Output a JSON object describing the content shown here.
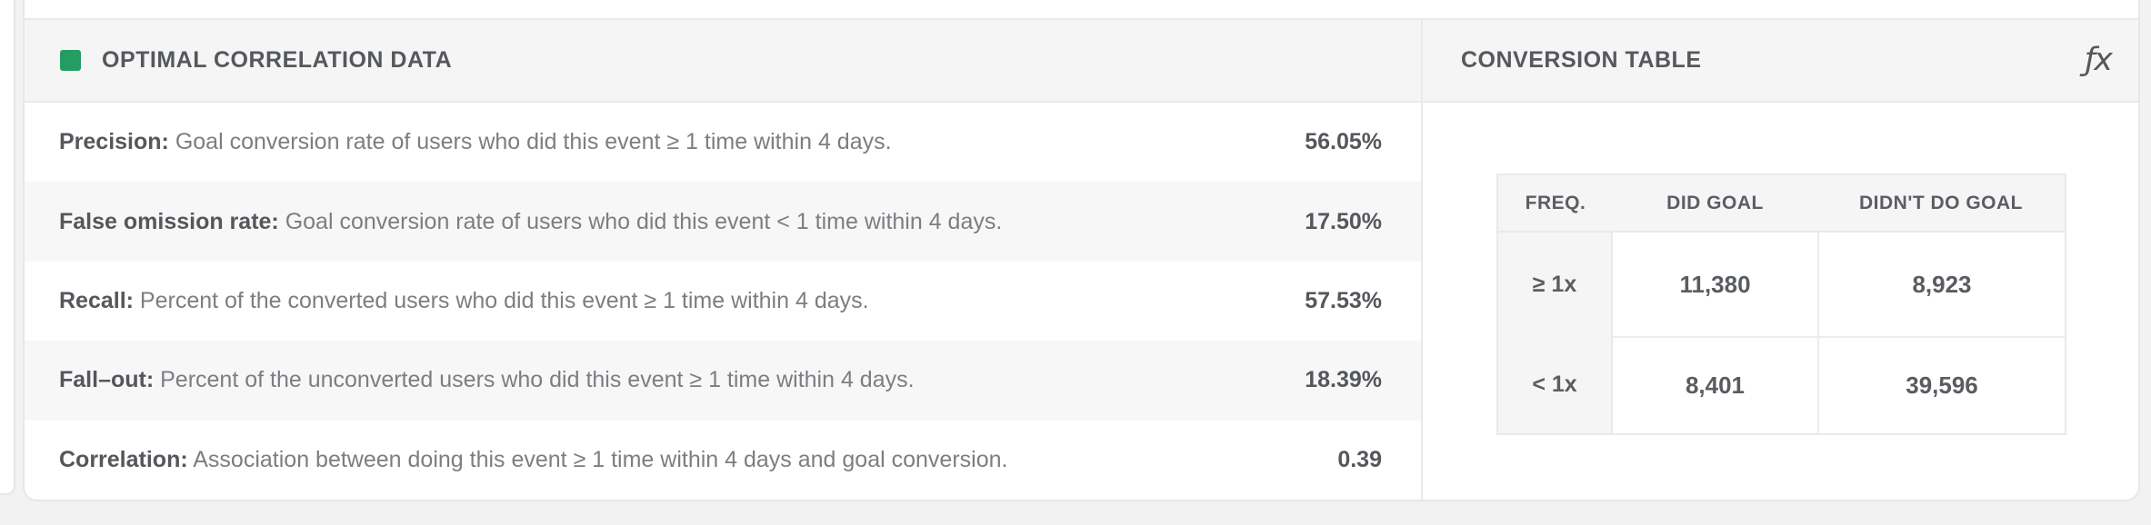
{
  "left_panel": {
    "title": "OPTIMAL CORRELATION DATA",
    "legend_color": "#249c62",
    "metrics": [
      {
        "label": "Precision:",
        "description": " Goal conversion rate of users who did this event ≥ 1 time within 4 days.",
        "value": "56.05%"
      },
      {
        "label": "False omission rate:",
        "description": " Goal conversion rate of users who did this event < 1 time within 4 days.",
        "value": "17.50%"
      },
      {
        "label": "Recall:",
        "description": " Percent of the converted users who did this event ≥ 1 time within 4 days.",
        "value": "57.53%"
      },
      {
        "label": "Fall–out:",
        "description": " Percent of the unconverted users who did this event ≥ 1 time within 4 days.",
        "value": "18.39%"
      },
      {
        "label": "Correlation:",
        "description": " Association between doing this event ≥ 1 time within 4 days and goal conversion.",
        "value": "0.39"
      }
    ]
  },
  "right_panel": {
    "title": "CONVERSION TABLE",
    "fx_icon_glyph": "ƒx",
    "table": {
      "headers": [
        "FREQ.",
        "DID GOAL",
        "DIDN'T DO GOAL"
      ],
      "rows": [
        [
          "≥ 1x",
          "11,380",
          "8,923"
        ],
        [
          "< 1x",
          "8,401",
          "39,596"
        ]
      ]
    }
  }
}
